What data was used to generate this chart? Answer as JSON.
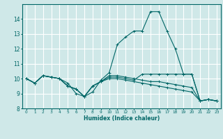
{
  "xlabel": "Humidex (Indice chaleur)",
  "xlim": [
    -0.5,
    23.5
  ],
  "ylim": [
    8,
    15
  ],
  "yticks": [
    8,
    9,
    10,
    11,
    12,
    13,
    14
  ],
  "xticks": [
    0,
    1,
    2,
    3,
    4,
    5,
    6,
    7,
    8,
    9,
    10,
    11,
    12,
    13,
    14,
    15,
    16,
    17,
    18,
    19,
    20,
    21,
    22,
    23
  ],
  "bg_color": "#cfe8e8",
  "line_color": "#006666",
  "grid_color": "#ffffff",
  "lines": [
    [
      10.0,
      9.7,
      10.2,
      10.1,
      10.0,
      9.7,
      9.0,
      8.8,
      9.1,
      9.9,
      10.4,
      12.3,
      12.8,
      13.2,
      13.2,
      14.5,
      14.5,
      13.2,
      12.0,
      10.3,
      10.3,
      8.5,
      8.6,
      8.5
    ],
    [
      10.0,
      9.7,
      10.2,
      10.1,
      10.0,
      9.5,
      9.3,
      8.8,
      9.5,
      9.8,
      10.2,
      10.2,
      10.1,
      10.0,
      9.9,
      9.8,
      9.8,
      9.7,
      9.6,
      9.5,
      9.4,
      8.5,
      8.6,
      8.5
    ],
    [
      10.0,
      9.7,
      10.2,
      10.1,
      10.0,
      9.5,
      9.3,
      8.8,
      9.5,
      9.8,
      10.1,
      10.1,
      10.0,
      9.9,
      10.3,
      10.3,
      10.3,
      10.3,
      10.3,
      10.3,
      10.3,
      8.5,
      8.6,
      8.5
    ],
    [
      10.0,
      9.7,
      10.2,
      10.1,
      10.0,
      9.5,
      9.3,
      8.8,
      9.5,
      9.8,
      10.0,
      10.0,
      9.9,
      9.8,
      9.7,
      9.6,
      9.5,
      9.4,
      9.3,
      9.2,
      9.1,
      8.5,
      8.6,
      8.5
    ]
  ]
}
